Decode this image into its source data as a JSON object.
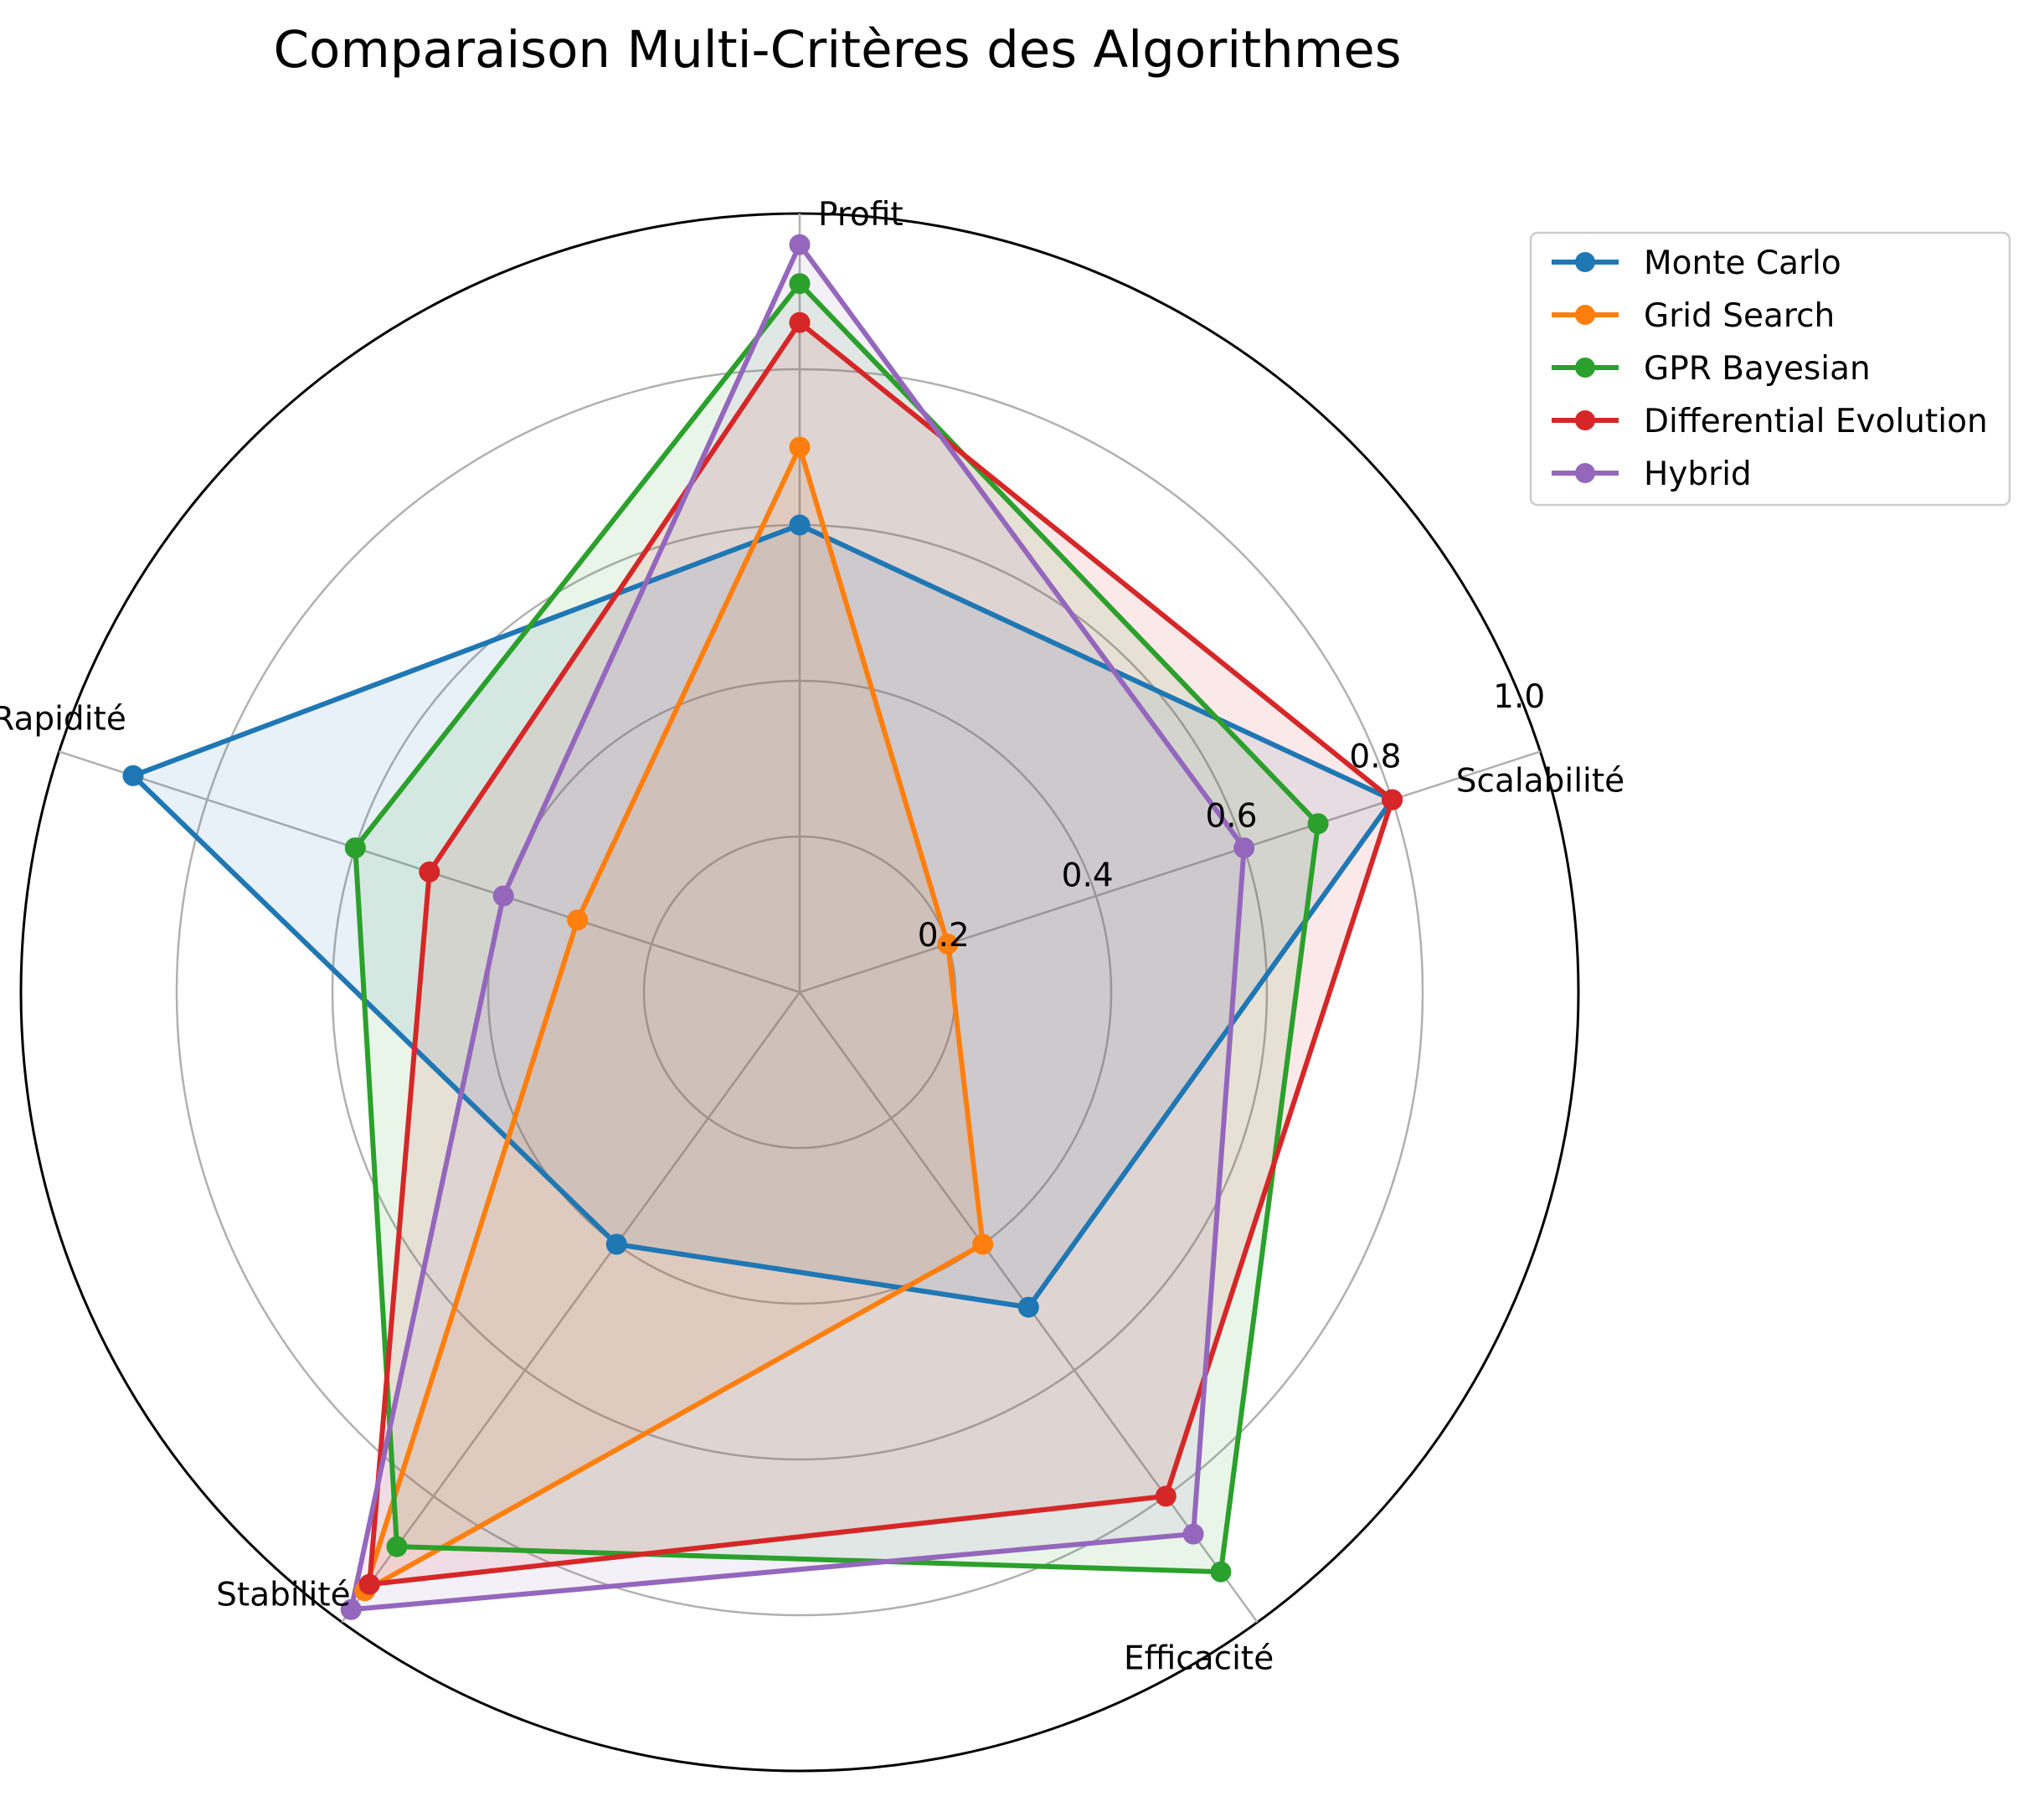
{
  "chart_data": {
    "type": "radar",
    "title": "Comparaison Multi-Critères des Algorithmes",
    "categories": [
      "Profit",
      "Rapidité",
      "Stabilité",
      "Efficacité",
      "Scalabilité"
    ],
    "radial_ticks": [
      "0.2",
      "0.4",
      "0.6",
      "0.8",
      "1.0"
    ],
    "rlim": [
      0,
      1.0
    ],
    "grid": true,
    "legend_position": "top-right, outside plot",
    "series": [
      {
        "name": "Monte Carlo",
        "color": "#1f77b4",
        "values": [
          0.6,
          0.9,
          0.4,
          0.5,
          0.8
        ]
      },
      {
        "name": "Grid Search",
        "color": "#ff7f0e",
        "values": [
          0.7,
          0.3,
          0.95,
          0.4,
          0.2
        ]
      },
      {
        "name": "GPR Bayesian",
        "color": "#2ca02c",
        "values": [
          0.91,
          0.6,
          0.88,
          0.92,
          0.7
        ]
      },
      {
        "name": "Differential Evolution",
        "color": "#d62728",
        "values": [
          0.86,
          0.5,
          0.94,
          0.8,
          0.8
        ]
      },
      {
        "name": "Hybrid",
        "color": "#9467bd",
        "values": [
          0.96,
          0.4,
          0.98,
          0.86,
          0.6
        ]
      }
    ]
  }
}
